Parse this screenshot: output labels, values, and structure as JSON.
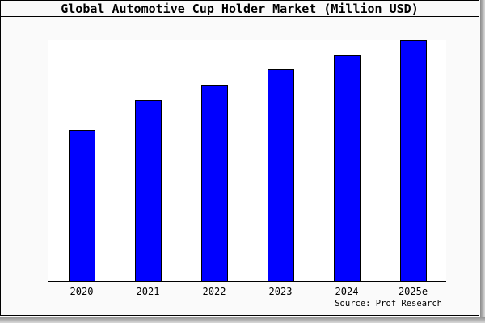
{
  "title": "Global Automotive Cup Holder Market (Million USD)",
  "source_note": "Source: Prof Research",
  "colors": {
    "bar_fill": "#0000ff",
    "bar_outline": "#000000",
    "axis": "#000000",
    "frame_background": "#fafafa",
    "plot_background": "#ffffff",
    "border": "#000000",
    "shadow": "#8a8a8a"
  },
  "chart_data": {
    "type": "bar",
    "title": "Global Automotive Cup Holder Market (Million USD)",
    "categories": [
      "2020",
      "2021",
      "2022",
      "2023",
      "2024",
      "2025e"
    ],
    "values_relative_height": [
      0.627,
      0.75,
      0.813,
      0.877,
      0.937,
      0.997
    ],
    "value_unit": "fraction of plot height (y axis is unlabeled in source image)",
    "xlabel": "",
    "ylabel": "",
    "yaxis_tick_labels_visible": false,
    "grid": false,
    "legend_position": "none",
    "annotation": "Source: Prof Research"
  }
}
